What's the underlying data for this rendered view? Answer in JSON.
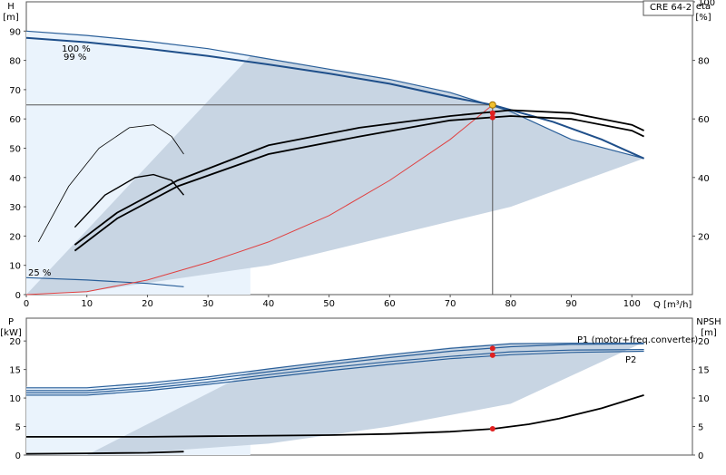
{
  "chart_data": [
    {
      "type": "line",
      "title": "CRE 64-2",
      "y_label_left": [
        "H",
        "[m]"
      ],
      "y_label_right": [
        "eta",
        "[%]"
      ],
      "x_label": "Q [m³/h]",
      "xlim": [
        0,
        110
      ],
      "ylim": [
        0,
        100
      ],
      "ylim_right": [
        0,
        100
      ],
      "x_ticks": [
        "0",
        "10",
        "20",
        "30",
        "40",
        "50",
        "60",
        "70",
        "80",
        "90",
        "100"
      ],
      "y_ticks": [
        "0",
        "10",
        "20",
        "30",
        "40",
        "50",
        "60",
        "70",
        "80",
        "90"
      ],
      "y_ticks_right": [
        "20",
        "40",
        "60",
        "80",
        "100"
      ],
      "curve_labels": [
        "100 %",
        "99 %",
        "25 %"
      ],
      "series": [
        {
          "role": "H 100%",
          "x": [
            0,
            10,
            20,
            30,
            40,
            50,
            60,
            70,
            80,
            90,
            102
          ],
          "y": [
            90,
            88.5,
            86.5,
            84,
            80.5,
            77,
            73.5,
            69,
            62.5,
            53,
            46.5
          ]
        },
        {
          "role": "H 99%",
          "x": [
            0,
            10,
            20,
            30,
            40,
            50,
            60,
            70,
            77,
            87,
            95,
            102
          ],
          "y": [
            87.7,
            86.2,
            84,
            81.5,
            78.6,
            75.5,
            72,
            67.5,
            64.8,
            59,
            53,
            46.5
          ]
        },
        {
          "role": "H 25%",
          "x": [
            0,
            10,
            20,
            26
          ],
          "y": [
            5.8,
            5,
            3.8,
            2.7
          ]
        },
        {
          "role": "system curve",
          "x": [
            0,
            10,
            20,
            30,
            40,
            50,
            60,
            70,
            77
          ],
          "y": [
            0,
            1,
            5,
            11,
            18,
            27,
            39,
            53,
            64.8
          ]
        },
        {
          "role": "eta 100%",
          "x": [
            8,
            15,
            25,
            40,
            55,
            70,
            80,
            90,
            100,
            102
          ],
          "y": [
            17,
            28,
            39,
            51,
            57,
            61,
            63,
            62,
            58,
            56
          ]
        },
        {
          "role": "eta 99%",
          "x": [
            8,
            15,
            25,
            40,
            55,
            70,
            80,
            90,
            100,
            102
          ],
          "y": [
            15,
            26,
            37,
            48,
            54,
            59.5,
            61,
            60,
            56,
            54
          ]
        },
        {
          "role": "eta low speed 1",
          "x": [
            2,
            7,
            12,
            17,
            21,
            24,
            26
          ],
          "y": [
            18,
            37,
            50,
            57,
            58,
            54,
            48
          ]
        },
        {
          "role": "eta low speed 2",
          "x": [
            8,
            13,
            18,
            21,
            24,
            26
          ],
          "y": [
            23,
            34,
            40,
            41,
            39,
            34
          ]
        }
      ],
      "duty_point": {
        "Q": 77,
        "H": 64.8,
        "eta": [
          62,
          60.5
        ]
      }
    },
    {
      "type": "line",
      "y_label_left": [
        "P",
        "[kW]"
      ],
      "y_label_right": [
        "NPSH",
        "[m]"
      ],
      "xlim": [
        0,
        110
      ],
      "ylim": [
        0,
        24
      ],
      "ylim_right": [
        0,
        24
      ],
      "y_ticks": [
        "0",
        "5",
        "10",
        "15",
        "20"
      ],
      "y_ticks_right": [
        "0",
        "5",
        "10",
        "15",
        "20"
      ],
      "series_labels": [
        "P1 (motor+freq.converter)",
        "P2"
      ],
      "series": [
        {
          "role": "P1 100%",
          "x": [
            0,
            10,
            20,
            30,
            40,
            50,
            60,
            70,
            80,
            90,
            102
          ],
          "y": [
            11.8,
            11.8,
            12.6,
            13.7,
            15.1,
            16.4,
            17.6,
            18.7,
            19.5,
            19.6,
            19.6
          ]
        },
        {
          "role": "P1 99%",
          "x": [
            0,
            10,
            20,
            30,
            40,
            50,
            60,
            70,
            80,
            90,
            102
          ],
          "y": [
            11.3,
            11.3,
            12.1,
            13.3,
            14.6,
            15.9,
            17.1,
            18.2,
            19.0,
            19.4,
            19.5
          ]
        },
        {
          "role": "P2 100%",
          "x": [
            0,
            10,
            20,
            30,
            40,
            50,
            60,
            70,
            80,
            90,
            102
          ],
          "y": [
            10.9,
            10.9,
            11.7,
            12.8,
            14.1,
            15.3,
            16.4,
            17.3,
            18.1,
            18.4,
            18.5
          ]
        },
        {
          "role": "P2 99%",
          "x": [
            0,
            10,
            20,
            30,
            40,
            50,
            60,
            70,
            80,
            90,
            102
          ],
          "y": [
            10.5,
            10.5,
            11.3,
            12.4,
            13.6,
            14.8,
            15.9,
            16.9,
            17.6,
            18.0,
            18.2
          ]
        },
        {
          "role": "NPSH",
          "x": [
            0,
            10,
            20,
            30,
            40,
            50,
            60,
            70,
            77,
            83,
            88,
            95,
            102
          ],
          "y": [
            3.2,
            3.2,
            3.2,
            3.3,
            3.4,
            3.5,
            3.7,
            4.1,
            4.6,
            5.4,
            6.4,
            8.2,
            10.5
          ]
        },
        {
          "role": "P 25%",
          "x": [
            0,
            10,
            20,
            26
          ],
          "y": [
            0.2,
            0.3,
            0.4,
            0.6
          ]
        }
      ],
      "duty_point": {
        "Q": 77,
        "P": [
          18.7,
          17.5
        ],
        "NPSH": 4.6
      }
    }
  ],
  "colors": {
    "curve_dark_blue": "#1f4f8a",
    "curve_mid_blue": "#2a5f99",
    "band_fill": "#c8d5e3",
    "light_fill": "#eaf3fc",
    "system_curve": "#e04040",
    "duty_marker": "#e02020",
    "op_point": "#f0c030",
    "eta_curve": "#000000",
    "grid_line": "#cccccc"
  }
}
